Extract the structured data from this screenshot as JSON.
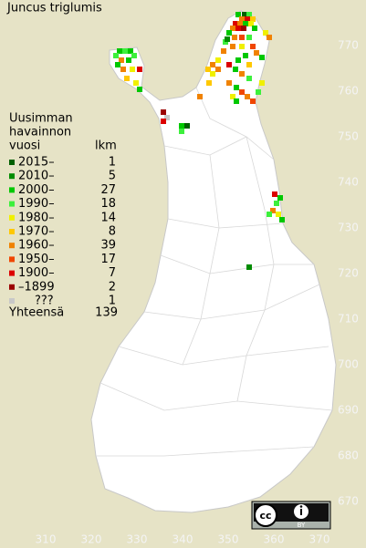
{
  "title": "Juncus triglumis",
  "legend": {
    "heading": [
      "Uusimman",
      "havainnon",
      "vuosi"
    ],
    "count_heading": "lkm",
    "rows": [
      {
        "label": "2015–",
        "count": 1,
        "color": "#006000"
      },
      {
        "label": "2010–",
        "count": 5,
        "color": "#008c00"
      },
      {
        "label": "2000–",
        "count": 27,
        "color": "#00c800"
      },
      {
        "label": "1990–",
        "count": 18,
        "color": "#3cf03c"
      },
      {
        "label": "1980–",
        "count": 14,
        "color": "#f0f000"
      },
      {
        "label": "1970–",
        "count": 8,
        "color": "#ffc800"
      },
      {
        "label": "1960–",
        "count": 39,
        "color": "#f08200"
      },
      {
        "label": "1950–",
        "count": 17,
        "color": "#f04600"
      },
      {
        "label": "1900–",
        "count": 7,
        "color": "#dc0000"
      },
      {
        "label": "–1899",
        "count": 2,
        "color": "#9b0000"
      },
      {
        "label": "???",
        "count": 1,
        "color": "#c8c8c8"
      }
    ],
    "total_label": "Yhteensä",
    "total": 139
  },
  "y_axis_labels": [
    "770",
    "760",
    "750",
    "740",
    "730",
    "720",
    "710",
    "700",
    "690",
    "680",
    "670"
  ],
  "x_axis_labels": [
    "310",
    "320",
    "330",
    "340",
    "350",
    "360",
    "370"
  ],
  "badge": {
    "by": "BY"
  }
}
